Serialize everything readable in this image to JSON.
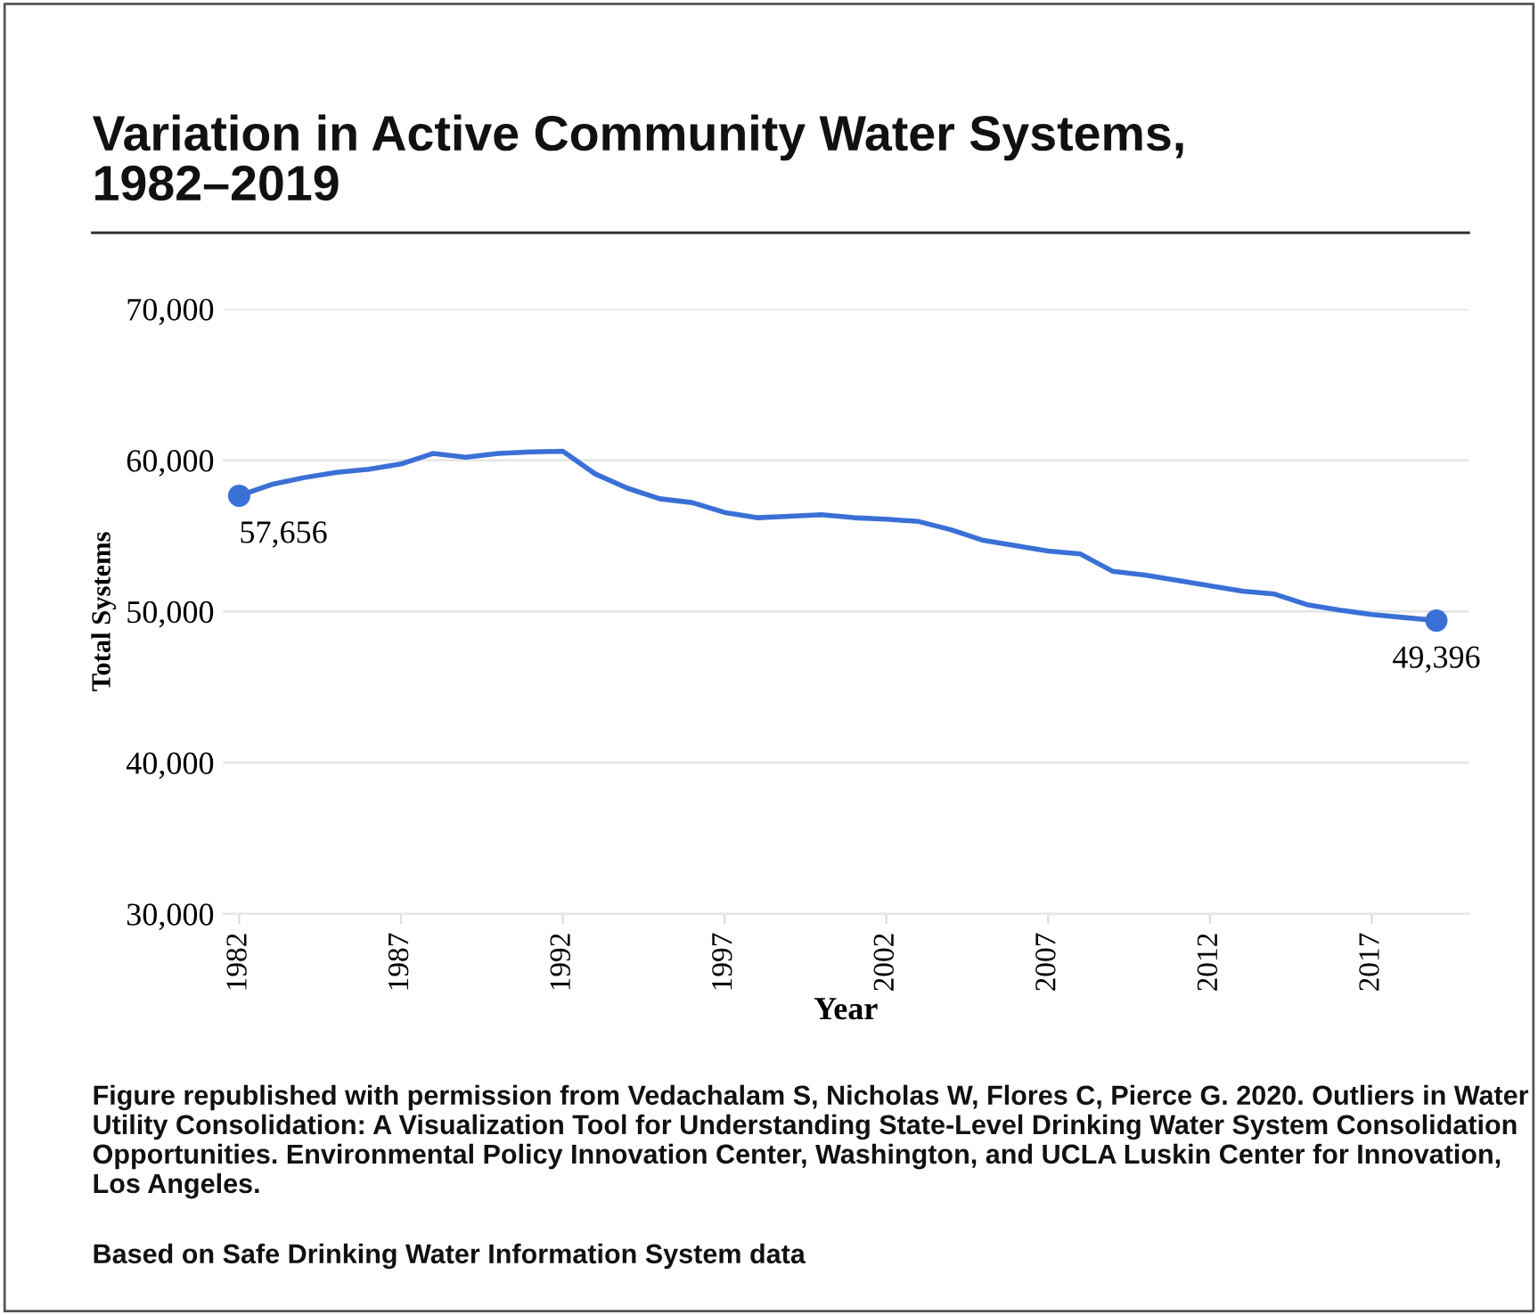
{
  "chart_data": {
    "type": "line",
    "title": "Variation in Active Community Water Systems,\n1982–2019",
    "xlabel": "Year",
    "ylabel": "Total Systems",
    "x": [
      1982,
      1983,
      1984,
      1985,
      1986,
      1987,
      1988,
      1989,
      1990,
      1991,
      1992,
      1993,
      1994,
      1995,
      1996,
      1997,
      1998,
      1999,
      2000,
      2001,
      2002,
      2003,
      2004,
      2005,
      2006,
      2007,
      2008,
      2009,
      2010,
      2011,
      2012,
      2013,
      2014,
      2015,
      2016,
      2017,
      2018,
      2019
    ],
    "series": [
      {
        "color": "#3a70d6",
        "values": [
          57656,
          58400,
          58850,
          59200,
          59400,
          59750,
          60450,
          60200,
          60450,
          60550,
          60600,
          59100,
          58150,
          57450,
          57200,
          56550,
          56200,
          56300,
          56400,
          56200,
          56100,
          55950,
          55400,
          54700,
          54350,
          54000,
          53800,
          52650,
          52400,
          52050,
          51700,
          51350,
          51150,
          50450,
          50100,
          49800,
          49600,
          49396
        ]
      }
    ],
    "xlim": [
      1981.5,
      2020
    ],
    "xticks": [
      1982,
      1987,
      1992,
      1997,
      2002,
      2007,
      2012,
      2017
    ],
    "ylim": [
      30000,
      70000
    ],
    "yticks": [
      {
        "value": 30000,
        "label": "30,000"
      },
      {
        "value": 40000,
        "label": "40,000"
      },
      {
        "value": 50000,
        "label": "50,000"
      },
      {
        "value": 60000,
        "label": "60,000"
      },
      {
        "value": 70000,
        "label": "70,000"
      }
    ],
    "grid": "y",
    "legend": false,
    "marker": "none",
    "line_style": "solid",
    "annotations": [
      {
        "text": "57,656",
        "x": 1982,
        "y": 57656
      },
      {
        "text": "49,396",
        "x": 2019,
        "y": 49396
      },
      "Figure republished with permission from Vedachalam S, Nicholas W, Flores C, Pierce G. 2020. Outliers in Water Utility Consolidation: A Visualization Tool for Understanding State-Level Drinking Water System Consolidation Opportunities. Environmental Policy Innovation Center, Washington, and UCLA Luskin Center for Innovation, Los Angeles.",
      "Based on Safe Drinking Water Information System data"
    ]
  }
}
